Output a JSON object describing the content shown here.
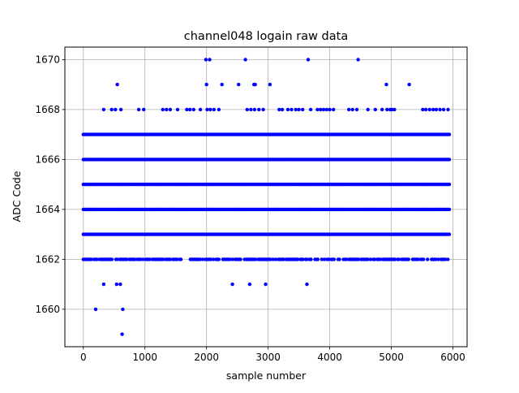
{
  "chart_data": {
    "type": "scatter",
    "title": "channel048 logain raw data",
    "xlabel": "sample number",
    "ylabel": "ADC Code",
    "xlim": [
      -300,
      6230
    ],
    "ylim": [
      1658.5,
      1670.5
    ],
    "x_ticks": [
      0,
      1000,
      2000,
      3000,
      4000,
      5000,
      6000
    ],
    "y_ticks": [
      1660,
      1662,
      1664,
      1666,
      1668,
      1670
    ],
    "grid": true,
    "marker_color": "#0000ff",
    "x_range_of_samples": [
      0,
      5940
    ],
    "dense_levels": [
      1663,
      1664,
      1665,
      1666,
      1667
    ],
    "semi_dense_levels": [
      1662
    ],
    "sparse_points": [
      {
        "x": 200,
        "y": 1660
      },
      {
        "x": 640,
        "y": 1660
      },
      {
        "x": 630,
        "y": 1659
      },
      {
        "x": 330,
        "y": 1661
      },
      {
        "x": 540,
        "y": 1661
      },
      {
        "x": 600,
        "y": 1661
      },
      {
        "x": 2420,
        "y": 1661
      },
      {
        "x": 2700,
        "y": 1661
      },
      {
        "x": 2960,
        "y": 1661
      },
      {
        "x": 3630,
        "y": 1661
      },
      {
        "x": 1990,
        "y": 1670
      },
      {
        "x": 2050,
        "y": 1670
      },
      {
        "x": 2630,
        "y": 1670
      },
      {
        "x": 3650,
        "y": 1670
      },
      {
        "x": 4460,
        "y": 1670
      },
      {
        "x": 550,
        "y": 1669
      },
      {
        "x": 2000,
        "y": 1669
      },
      {
        "x": 2250,
        "y": 1669
      },
      {
        "x": 2520,
        "y": 1669
      },
      {
        "x": 2770,
        "y": 1669
      },
      {
        "x": 2790,
        "y": 1669
      },
      {
        "x": 3030,
        "y": 1669
      },
      {
        "x": 4920,
        "y": 1669
      },
      {
        "x": 5290,
        "y": 1669
      },
      {
        "x": 330,
        "y": 1668
      },
      {
        "x": 460,
        "y": 1668
      },
      {
        "x": 520,
        "y": 1668
      },
      {
        "x": 610,
        "y": 1668
      },
      {
        "x": 900,
        "y": 1668
      },
      {
        "x": 980,
        "y": 1668
      },
      {
        "x": 1290,
        "y": 1668
      },
      {
        "x": 1350,
        "y": 1668
      },
      {
        "x": 1410,
        "y": 1668
      },
      {
        "x": 1530,
        "y": 1668
      },
      {
        "x": 1680,
        "y": 1668
      },
      {
        "x": 1730,
        "y": 1668
      },
      {
        "x": 1790,
        "y": 1668
      },
      {
        "x": 1900,
        "y": 1668
      },
      {
        "x": 2010,
        "y": 1668
      },
      {
        "x": 2060,
        "y": 1668
      },
      {
        "x": 2120,
        "y": 1668
      },
      {
        "x": 2200,
        "y": 1668
      },
      {
        "x": 2660,
        "y": 1668
      },
      {
        "x": 2720,
        "y": 1668
      },
      {
        "x": 2780,
        "y": 1668
      },
      {
        "x": 2850,
        "y": 1668
      },
      {
        "x": 2920,
        "y": 1668
      },
      {
        "x": 3180,
        "y": 1668
      },
      {
        "x": 3230,
        "y": 1668
      },
      {
        "x": 3320,
        "y": 1668
      },
      {
        "x": 3380,
        "y": 1668
      },
      {
        "x": 3450,
        "y": 1668
      },
      {
        "x": 3500,
        "y": 1668
      },
      {
        "x": 3560,
        "y": 1668
      },
      {
        "x": 3690,
        "y": 1668
      },
      {
        "x": 3800,
        "y": 1668
      },
      {
        "x": 3850,
        "y": 1668
      },
      {
        "x": 3900,
        "y": 1668
      },
      {
        "x": 3950,
        "y": 1668
      },
      {
        "x": 4000,
        "y": 1668
      },
      {
        "x": 4060,
        "y": 1668
      },
      {
        "x": 4310,
        "y": 1668
      },
      {
        "x": 4370,
        "y": 1668
      },
      {
        "x": 4440,
        "y": 1668
      },
      {
        "x": 4620,
        "y": 1668
      },
      {
        "x": 4740,
        "y": 1668
      },
      {
        "x": 4850,
        "y": 1668
      },
      {
        "x": 4930,
        "y": 1668
      },
      {
        "x": 4980,
        "y": 1668
      },
      {
        "x": 5010,
        "y": 1668
      },
      {
        "x": 5050,
        "y": 1668
      },
      {
        "x": 5510,
        "y": 1668
      },
      {
        "x": 5560,
        "y": 1668
      },
      {
        "x": 5620,
        "y": 1668
      },
      {
        "x": 5680,
        "y": 1668
      },
      {
        "x": 5730,
        "y": 1668
      },
      {
        "x": 5790,
        "y": 1668
      },
      {
        "x": 5850,
        "y": 1668
      },
      {
        "x": 5920,
        "y": 1668
      }
    ]
  }
}
